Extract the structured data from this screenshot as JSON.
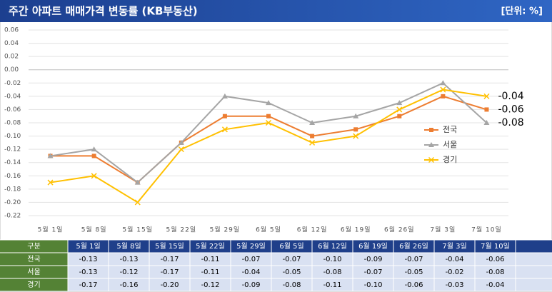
{
  "chart_data": {
    "type": "line",
    "title": "주간 아파트 매매가격 변동률 (KB부동산)",
    "unit_note": "[단위: %]",
    "table_header": "구분",
    "categories": [
      "5월 1일",
      "5월 8일",
      "5월 15일",
      "5월 22일",
      "5월 29일",
      "6월 5일",
      "6월 12일",
      "6월 19일",
      "6월 26일",
      "7월 3일",
      "7월 10일"
    ],
    "series": [
      {
        "name": "전국",
        "color": "#ed7d31",
        "marker": "square",
        "values": [
          -0.13,
          -0.13,
          -0.17,
          -0.11,
          -0.07,
          -0.07,
          -0.1,
          -0.09,
          -0.07,
          -0.04,
          -0.06
        ],
        "value_labels": [
          "-0.13",
          "-0.13",
          "-0.17",
          "-0.11",
          "-0.07",
          "-0.07",
          "-0.10",
          "-0.09",
          "-0.07",
          "-0.04",
          "-0.06"
        ]
      },
      {
        "name": "서울",
        "color": "#a5a5a5",
        "marker": "triangle",
        "values": [
          -0.13,
          -0.12,
          -0.17,
          -0.11,
          -0.04,
          -0.05,
          -0.08,
          -0.07,
          -0.05,
          -0.02,
          -0.08
        ],
        "value_labels": [
          "-0.13",
          "-0.12",
          "-0.17",
          "-0.11",
          "-0.04",
          "-0.05",
          "-0.08",
          "-0.07",
          "-0.05",
          "-0.02",
          "-0.08"
        ]
      },
      {
        "name": "경기",
        "color": "#ffc000",
        "marker": "x",
        "values": [
          -0.17,
          -0.16,
          -0.2,
          -0.12,
          -0.09,
          -0.08,
          -0.11,
          -0.1,
          -0.06,
          -0.03,
          -0.04
        ],
        "value_labels": [
          "-0.17",
          "-0.16",
          "-0.20",
          "-0.12",
          "-0.09",
          "-0.08",
          "-0.11",
          "-0.10",
          "-0.06",
          "-0.03",
          "-0.04"
        ]
      }
    ],
    "ylim": [
      -0.22,
      0.06
    ],
    "yticks": [
      0.06,
      0.04,
      0.02,
      {
        "value": 0,
        "label": "0.00"
      },
      -0.02,
      -0.04,
      -0.06,
      -0.08,
      {
        "value": -0.1,
        "label": "-0.10"
      },
      -0.12,
      -0.14,
      -0.16,
      -0.18,
      {
        "value": -0.2,
        "label": "-0.20"
      },
      -0.22
    ],
    "grid": true
  }
}
